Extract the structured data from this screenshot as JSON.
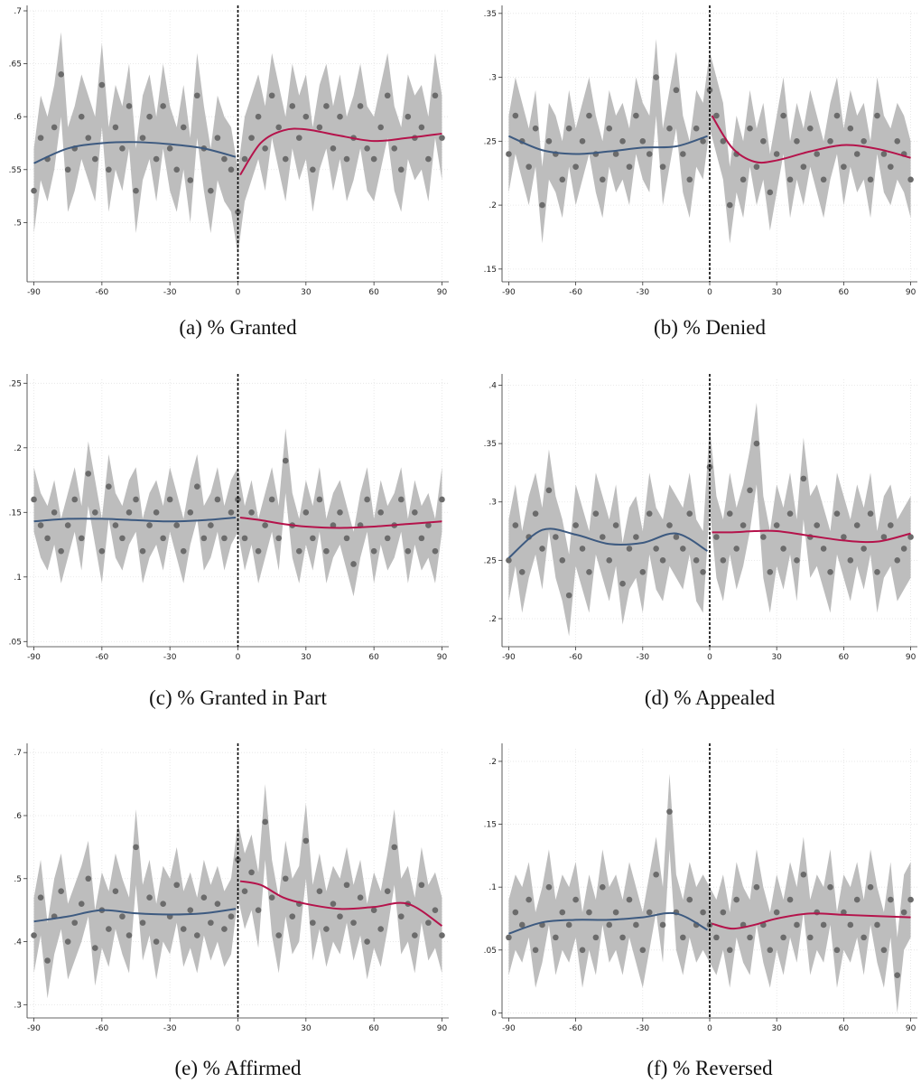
{
  "chart_data": [
    {
      "type": "scatter",
      "caption": "(a) % Granted",
      "x": [
        -90,
        -87,
        -84,
        -81,
        -78,
        -75,
        -72,
        -69,
        -66,
        -63,
        -60,
        -57,
        -54,
        -51,
        -48,
        -45,
        -42,
        -39,
        -36,
        -33,
        -30,
        -27,
        -24,
        -21,
        -18,
        -15,
        -12,
        -9,
        -6,
        -3,
        0,
        3,
        6,
        9,
        12,
        15,
        18,
        21,
        24,
        27,
        30,
        33,
        36,
        39,
        42,
        45,
        48,
        51,
        54,
        57,
        60,
        63,
        66,
        69,
        72,
        75,
        78,
        81,
        84,
        87,
        90
      ],
      "values": [
        0.53,
        0.58,
        0.56,
        0.59,
        0.64,
        0.55,
        0.57,
        0.6,
        0.58,
        0.56,
        0.63,
        0.55,
        0.59,
        0.57,
        0.61,
        0.53,
        0.58,
        0.6,
        0.56,
        0.61,
        0.57,
        0.55,
        0.59,
        0.54,
        0.62,
        0.57,
        0.53,
        0.58,
        0.56,
        0.55,
        0.51,
        0.56,
        0.58,
        0.6,
        0.57,
        0.62,
        0.59,
        0.56,
        0.61,
        0.58,
        0.6,
        0.55,
        0.59,
        0.61,
        0.57,
        0.6,
        0.56,
        0.58,
        0.61,
        0.57,
        0.56,
        0.59,
        0.62,
        0.57,
        0.55,
        0.6,
        0.58,
        0.59,
        0.56,
        0.62,
        0.58
      ],
      "ci_halfwidth": 0.04,
      "fits": [
        {
          "x": [
            -90,
            -75,
            -60,
            -45,
            -30,
            -15,
            -1
          ],
          "values": [
            0.556,
            0.57,
            0.575,
            0.576,
            0.574,
            0.57,
            0.562
          ],
          "color": "#3d5a80"
        },
        {
          "x": [
            1,
            10,
            20,
            30,
            45,
            60,
            75,
            90
          ],
          "values": [
            0.545,
            0.575,
            0.587,
            0.588,
            0.582,
            0.577,
            0.58,
            0.584
          ],
          "color": "#b5134b"
        }
      ],
      "cutoff": 0,
      "xlim": [
        -93,
        93
      ],
      "ylim": [
        0.444,
        0.7
      ],
      "xticks": [
        -90,
        -60,
        -30,
        0,
        30,
        60,
        90
      ],
      "yticks": [
        {
          "value": 0.5,
          "label": ".5"
        },
        {
          "value": 0.55,
          "label": ".55"
        },
        {
          "value": 0.6,
          "label": ".6"
        },
        {
          "value": 0.65,
          "label": ".65"
        },
        {
          "value": 0.7,
          "label": ".7"
        }
      ],
      "color": "#6b6b6b",
      "band_color": "#bdbdbd",
      "grid": true
    },
    {
      "type": "scatter",
      "caption": "(b) % Denied",
      "x": [
        -90,
        -87,
        -84,
        -81,
        -78,
        -75,
        -72,
        -69,
        -66,
        -63,
        -60,
        -57,
        -54,
        -51,
        -48,
        -45,
        -42,
        -39,
        -36,
        -33,
        -30,
        -27,
        -24,
        -21,
        -18,
        -15,
        -12,
        -9,
        -6,
        -3,
        0,
        3,
        6,
        9,
        12,
        15,
        18,
        21,
        24,
        27,
        30,
        33,
        36,
        39,
        42,
        45,
        48,
        51,
        54,
        57,
        60,
        63,
        66,
        69,
        72,
        75,
        78,
        81,
        84,
        87,
        90
      ],
      "values": [
        0.24,
        0.27,
        0.25,
        0.23,
        0.26,
        0.2,
        0.25,
        0.24,
        0.22,
        0.26,
        0.23,
        0.25,
        0.27,
        0.24,
        0.22,
        0.26,
        0.24,
        0.25,
        0.23,
        0.27,
        0.25,
        0.24,
        0.3,
        0.23,
        0.26,
        0.29,
        0.24,
        0.22,
        0.26,
        0.25,
        0.29,
        0.27,
        0.25,
        0.2,
        0.24,
        0.22,
        0.26,
        0.23,
        0.25,
        0.21,
        0.24,
        0.27,
        0.22,
        0.25,
        0.23,
        0.26,
        0.24,
        0.22,
        0.25,
        0.27,
        0.23,
        0.26,
        0.24,
        0.25,
        0.22,
        0.27,
        0.24,
        0.23,
        0.25,
        0.24,
        0.22
      ],
      "ci_halfwidth": 0.03,
      "fits": [
        {
          "x": [
            -90,
            -75,
            -60,
            -45,
            -30,
            -15,
            -1
          ],
          "values": [
            0.254,
            0.243,
            0.24,
            0.242,
            0.245,
            0.246,
            0.254
          ],
          "color": "#3d5a80"
        },
        {
          "x": [
            1,
            10,
            20,
            30,
            45,
            60,
            75,
            90
          ],
          "values": [
            0.27,
            0.245,
            0.234,
            0.235,
            0.242,
            0.247,
            0.244,
            0.237
          ],
          "color": "#b5134b"
        }
      ],
      "cutoff": 0,
      "xlim": [
        -93,
        93
      ],
      "ylim": [
        0.14,
        0.352
      ],
      "xticks": [
        -90,
        -60,
        -30,
        0,
        30,
        60,
        90
      ],
      "yticks": [
        {
          "value": 0.15,
          "label": ".15"
        },
        {
          "value": 0.2,
          "label": ".2"
        },
        {
          "value": 0.25,
          "label": ".25"
        },
        {
          "value": 0.3,
          "label": ".3"
        },
        {
          "value": 0.35,
          "label": ".35"
        }
      ],
      "color": "#6b6b6b",
      "band_color": "#bdbdbd",
      "grid": true
    },
    {
      "type": "scatter",
      "caption": "(c) % Granted in Part",
      "x": [
        -90,
        -87,
        -84,
        -81,
        -78,
        -75,
        -72,
        -69,
        -66,
        -63,
        -60,
        -57,
        -54,
        -51,
        -48,
        -45,
        -42,
        -39,
        -36,
        -33,
        -30,
        -27,
        -24,
        -21,
        -18,
        -15,
        -12,
        -9,
        -6,
        -3,
        0,
        3,
        6,
        9,
        12,
        15,
        18,
        21,
        24,
        27,
        30,
        33,
        36,
        39,
        42,
        45,
        48,
        51,
        54,
        57,
        60,
        63,
        66,
        69,
        72,
        75,
        78,
        81,
        84,
        87,
        90
      ],
      "values": [
        0.16,
        0.14,
        0.13,
        0.15,
        0.12,
        0.14,
        0.16,
        0.13,
        0.18,
        0.15,
        0.12,
        0.17,
        0.14,
        0.13,
        0.15,
        0.16,
        0.12,
        0.14,
        0.15,
        0.13,
        0.16,
        0.14,
        0.12,
        0.15,
        0.17,
        0.13,
        0.14,
        0.16,
        0.13,
        0.15,
        0.16,
        0.13,
        0.15,
        0.12,
        0.14,
        0.16,
        0.13,
        0.19,
        0.14,
        0.12,
        0.15,
        0.13,
        0.16,
        0.12,
        0.14,
        0.15,
        0.13,
        0.11,
        0.14,
        0.16,
        0.12,
        0.15,
        0.13,
        0.14,
        0.16,
        0.12,
        0.15,
        0.13,
        0.14,
        0.12,
        0.16
      ],
      "ci_halfwidth": 0.025,
      "fits": [
        {
          "x": [
            -90,
            -75,
            -60,
            -45,
            -30,
            -15,
            -1
          ],
          "values": [
            0.143,
            0.145,
            0.145,
            0.144,
            0.143,
            0.144,
            0.146
          ],
          "color": "#3d5a80"
        },
        {
          "x": [
            1,
            10,
            20,
            30,
            45,
            60,
            75,
            90
          ],
          "values": [
            0.146,
            0.144,
            0.141,
            0.139,
            0.138,
            0.139,
            0.141,
            0.143
          ],
          "color": "#b5134b"
        }
      ],
      "cutoff": 0,
      "xlim": [
        -93,
        93
      ],
      "ylim": [
        0.046,
        0.253
      ],
      "xticks": [
        -90,
        -60,
        -30,
        0,
        30,
        60,
        90
      ],
      "yticks": [
        {
          "value": 0.05,
          "label": ".05"
        },
        {
          "value": 0.1,
          "label": ".1"
        },
        {
          "value": 0.15,
          "label": ".15"
        },
        {
          "value": 0.2,
          "label": ".2"
        },
        {
          "value": 0.25,
          "label": ".25"
        }
      ],
      "color": "#6b6b6b",
      "band_color": "#bdbdbd",
      "grid": true
    },
    {
      "type": "scatter",
      "caption": "(d) % Appealed",
      "x": [
        -90,
        -87,
        -84,
        -81,
        -78,
        -75,
        -72,
        -69,
        -66,
        -63,
        -60,
        -57,
        -54,
        -51,
        -48,
        -45,
        -42,
        -39,
        -36,
        -33,
        -30,
        -27,
        -24,
        -21,
        -18,
        -15,
        -12,
        -9,
        -6,
        -3,
        0,
        3,
        6,
        9,
        12,
        15,
        18,
        21,
        24,
        27,
        30,
        33,
        36,
        39,
        42,
        45,
        48,
        51,
        54,
        57,
        60,
        63,
        66,
        69,
        72,
        75,
        78,
        81,
        84,
        87,
        90
      ],
      "values": [
        0.25,
        0.28,
        0.24,
        0.27,
        0.29,
        0.26,
        0.31,
        0.27,
        0.25,
        0.22,
        0.28,
        0.26,
        0.24,
        0.29,
        0.27,
        0.25,
        0.28,
        0.23,
        0.26,
        0.27,
        0.24,
        0.29,
        0.26,
        0.25,
        0.28,
        0.27,
        0.26,
        0.29,
        0.25,
        0.24,
        0.33,
        0.27,
        0.25,
        0.29,
        0.26,
        0.28,
        0.31,
        0.35,
        0.27,
        0.24,
        0.28,
        0.26,
        0.29,
        0.25,
        0.32,
        0.27,
        0.28,
        0.26,
        0.24,
        0.29,
        0.27,
        0.25,
        0.28,
        0.26,
        0.29,
        0.24,
        0.27,
        0.28,
        0.25,
        0.26,
        0.27
      ],
      "ci_halfwidth": 0.035,
      "fits": [
        {
          "x": [
            -90,
            -75,
            -60,
            -45,
            -30,
            -15,
            -1
          ],
          "values": [
            0.252,
            0.276,
            0.272,
            0.264,
            0.265,
            0.273,
            0.258
          ],
          "color": "#3d5a80"
        },
        {
          "x": [
            1,
            10,
            20,
            30,
            45,
            60,
            75,
            90
          ],
          "values": [
            0.274,
            0.274,
            0.275,
            0.275,
            0.271,
            0.267,
            0.266,
            0.273
          ],
          "color": "#b5134b"
        }
      ],
      "cutoff": 0,
      "xlim": [
        -93,
        93
      ],
      "ylim": [
        0.176,
        0.405
      ],
      "xticks": [
        -90,
        -60,
        -30,
        0,
        30,
        60,
        90
      ],
      "yticks": [
        {
          "value": 0.2,
          "label": ".2"
        },
        {
          "value": 0.25,
          "label": ".25"
        },
        {
          "value": 0.3,
          "label": ".3"
        },
        {
          "value": 0.35,
          "label": ".35"
        },
        {
          "value": 0.4,
          "label": ".4"
        }
      ],
      "color": "#6b6b6b",
      "band_color": "#bdbdbd",
      "grid": true
    },
    {
      "type": "scatter",
      "caption": "(e) % Affirmed",
      "x": [
        -90,
        -87,
        -84,
        -81,
        -78,
        -75,
        -72,
        -69,
        -66,
        -63,
        -60,
        -57,
        -54,
        -51,
        -48,
        -45,
        -42,
        -39,
        -36,
        -33,
        -30,
        -27,
        -24,
        -21,
        -18,
        -15,
        -12,
        -9,
        -6,
        -3,
        0,
        3,
        6,
        9,
        12,
        15,
        18,
        21,
        24,
        27,
        30,
        33,
        36,
        39,
        42,
        45,
        48,
        51,
        54,
        57,
        60,
        63,
        66,
        69,
        72,
        75,
        78,
        81,
        84,
        87,
        90
      ],
      "values": [
        0.41,
        0.47,
        0.37,
        0.44,
        0.48,
        0.4,
        0.43,
        0.46,
        0.5,
        0.39,
        0.45,
        0.42,
        0.48,
        0.44,
        0.41,
        0.55,
        0.43,
        0.47,
        0.4,
        0.46,
        0.44,
        0.49,
        0.42,
        0.45,
        0.41,
        0.47,
        0.43,
        0.46,
        0.42,
        0.44,
        0.53,
        0.48,
        0.51,
        0.45,
        0.59,
        0.47,
        0.41,
        0.5,
        0.44,
        0.46,
        0.56,
        0.43,
        0.48,
        0.42,
        0.46,
        0.44,
        0.49,
        0.43,
        0.47,
        0.4,
        0.45,
        0.42,
        0.48,
        0.55,
        0.44,
        0.46,
        0.41,
        0.49,
        0.43,
        0.45,
        0.41
      ],
      "ci_halfwidth": 0.06,
      "fits": [
        {
          "x": [
            -90,
            -75,
            -60,
            -45,
            -30,
            -15,
            -1
          ],
          "values": [
            0.432,
            0.44,
            0.45,
            0.445,
            0.443,
            0.445,
            0.452
          ],
          "color": "#3d5a80"
        },
        {
          "x": [
            1,
            10,
            20,
            30,
            45,
            60,
            75,
            90
          ],
          "values": [
            0.496,
            0.49,
            0.47,
            0.46,
            0.452,
            0.455,
            0.46,
            0.425
          ],
          "color": "#b5134b"
        }
      ],
      "cutoff": 0,
      "xlim": [
        -93,
        93
      ],
      "ylim": [
        0.279,
        0.706
      ],
      "xticks": [
        -90,
        -60,
        -30,
        0,
        30,
        60,
        90
      ],
      "yticks": [
        {
          "value": 0.3,
          "label": ".3"
        },
        {
          "value": 0.4,
          "label": ".4"
        },
        {
          "value": 0.5,
          "label": ".5"
        },
        {
          "value": 0.6,
          "label": ".6"
        },
        {
          "value": 0.7,
          "label": ".7"
        }
      ],
      "color": "#6b6b6b",
      "band_color": "#bdbdbd",
      "grid": true
    },
    {
      "type": "scatter",
      "caption": "(f) % Reversed",
      "x": [
        -90,
        -87,
        -84,
        -81,
        -78,
        -75,
        -72,
        -69,
        -66,
        -63,
        -60,
        -57,
        -54,
        -51,
        -48,
        -45,
        -42,
        -39,
        -36,
        -33,
        -30,
        -27,
        -24,
        -21,
        -18,
        -15,
        -12,
        -9,
        -6,
        -3,
        0,
        3,
        6,
        9,
        12,
        15,
        18,
        21,
        24,
        27,
        30,
        33,
        36,
        39,
        42,
        45,
        48,
        51,
        54,
        57,
        60,
        63,
        66,
        69,
        72,
        75,
        78,
        81,
        84,
        87,
        90
      ],
      "values": [
        0.06,
        0.08,
        0.07,
        0.09,
        0.05,
        0.07,
        0.1,
        0.06,
        0.08,
        0.07,
        0.09,
        0.05,
        0.08,
        0.06,
        0.1,
        0.07,
        0.08,
        0.06,
        0.09,
        0.07,
        0.05,
        0.08,
        0.11,
        0.07,
        0.16,
        0.08,
        0.06,
        0.09,
        0.07,
        0.08,
        0.07,
        0.06,
        0.08,
        0.05,
        0.09,
        0.07,
        0.06,
        0.1,
        0.07,
        0.05,
        0.08,
        0.06,
        0.09,
        0.07,
        0.11,
        0.06,
        0.08,
        0.07,
        0.1,
        0.05,
        0.08,
        0.07,
        0.09,
        0.06,
        0.1,
        0.07,
        0.05,
        0.09,
        0.03,
        0.08,
        0.09
      ],
      "ci_halfwidth": 0.03,
      "fits": [
        {
          "x": [
            -90,
            -75,
            -60,
            -45,
            -30,
            -15,
            -1
          ],
          "values": [
            0.063,
            0.072,
            0.074,
            0.074,
            0.076,
            0.079,
            0.066
          ],
          "color": "#3d5a80"
        },
        {
          "x": [
            1,
            10,
            20,
            30,
            45,
            60,
            75,
            90
          ],
          "values": [
            0.071,
            0.067,
            0.07,
            0.075,
            0.079,
            0.078,
            0.077,
            0.076
          ],
          "color": "#b5134b"
        }
      ],
      "cutoff": 0,
      "xlim": [
        -93,
        93
      ],
      "ylim": [
        -0.004,
        0.21
      ],
      "xticks": [
        -90,
        -60,
        -30,
        0,
        30,
        60,
        90
      ],
      "yticks": [
        0,
        {
          "value": 0.05,
          "label": ".05"
        },
        {
          "value": 0.1,
          "label": ".1"
        },
        {
          "value": 0.15,
          "label": ".15"
        },
        {
          "value": 0.2,
          "label": ".2"
        }
      ],
      "color": "#6b6b6b",
      "band_color": "#bdbdbd",
      "grid": true
    }
  ]
}
